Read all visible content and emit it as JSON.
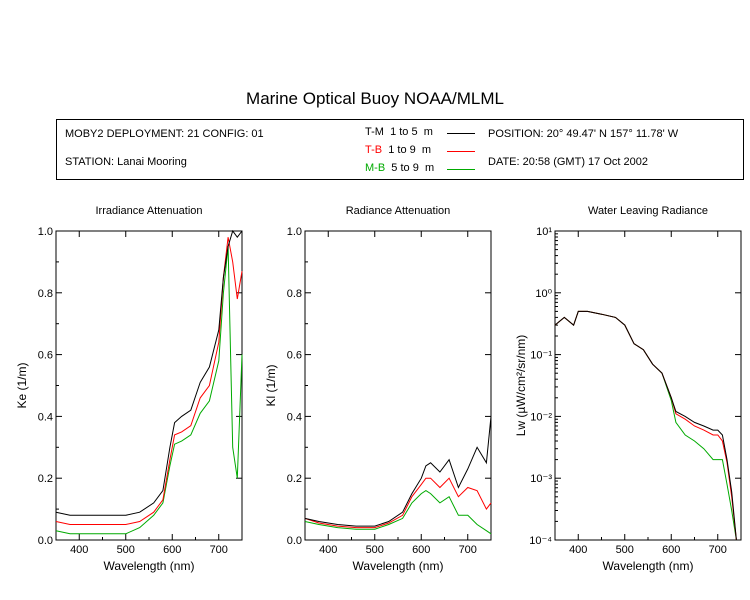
{
  "header": {
    "title": "Marine Optical Buoy NOAA/MLML",
    "deployment": "MOBY2 DEPLOYMENT: 21 CONFIG: 01",
    "station": "STATION: Lanai Mooring",
    "position": "POSITION: 20° 49.47' N   157° 11.78' W",
    "date": "DATE: 20:58 (GMT) 17 Oct 2002"
  },
  "legend": [
    {
      "code": "T-M",
      "range": "1 to 5",
      "unit": "m",
      "color": "#000000"
    },
    {
      "code": "T-B",
      "range": "1 to 9",
      "unit": "m",
      "color": "#ff0000"
    },
    {
      "code": "M-B",
      "range": "5 to 9",
      "unit": "m",
      "color": "#00aa00"
    }
  ],
  "chart_data": [
    {
      "type": "line",
      "title": "Irradiance Attenuation",
      "xlabel": "Wavelength (nm)",
      "ylabel": "Ke  (1/m)",
      "xlim": [
        350,
        750
      ],
      "ylim": [
        0,
        1.0
      ],
      "xticks": [
        "400",
        "500",
        "600",
        "700"
      ],
      "yticks": [
        "0.0",
        "0.2",
        "0.4",
        "0.6",
        "0.8",
        "1.0"
      ],
      "series": [
        {
          "name": "T-M",
          "x": [
            350,
            380,
            420,
            460,
            500,
            530,
            560,
            580,
            595,
            605,
            620,
            640,
            660,
            680,
            700,
            710,
            720,
            730,
            740,
            750
          ],
          "y": [
            0.09,
            0.08,
            0.08,
            0.08,
            0.08,
            0.09,
            0.12,
            0.16,
            0.3,
            0.38,
            0.4,
            0.42,
            0.51,
            0.56,
            0.68,
            0.85,
            0.95,
            1.0,
            0.98,
            1.0
          ]
        },
        {
          "name": "T-B",
          "x": [
            350,
            380,
            420,
            460,
            500,
            530,
            560,
            580,
            595,
            605,
            620,
            640,
            660,
            680,
            700,
            710,
            720,
            730,
            740,
            750
          ],
          "y": [
            0.06,
            0.05,
            0.05,
            0.05,
            0.05,
            0.06,
            0.09,
            0.13,
            0.26,
            0.34,
            0.35,
            0.37,
            0.46,
            0.5,
            0.64,
            0.85,
            0.98,
            0.9,
            0.78,
            0.87
          ]
        },
        {
          "name": "M-B",
          "x": [
            350,
            380,
            420,
            460,
            500,
            530,
            560,
            580,
            595,
            605,
            620,
            640,
            660,
            680,
            700,
            710,
            720,
            730,
            740,
            750
          ],
          "y": [
            0.03,
            0.02,
            0.02,
            0.02,
            0.02,
            0.04,
            0.08,
            0.12,
            0.24,
            0.31,
            0.32,
            0.34,
            0.41,
            0.45,
            0.58,
            0.8,
            0.95,
            0.3,
            0.2,
            0.6
          ]
        }
      ]
    },
    {
      "type": "line",
      "title": "Radiance Attenuation",
      "xlabel": "Wavelength (nm)",
      "ylabel": "Kl  (1/m)",
      "xlim": [
        350,
        750
      ],
      "ylim": [
        0,
        1.0
      ],
      "xticks": [
        "400",
        "500",
        "600",
        "700"
      ],
      "yticks": [
        "0.0",
        "0.2",
        "0.4",
        "0.6",
        "0.8",
        "1.0"
      ],
      "series": [
        {
          "name": "T-M",
          "x": [
            350,
            380,
            420,
            460,
            500,
            530,
            560,
            580,
            600,
            610,
            620,
            640,
            660,
            680,
            700,
            720,
            740,
            750
          ],
          "y": [
            0.07,
            0.06,
            0.05,
            0.045,
            0.045,
            0.06,
            0.09,
            0.15,
            0.2,
            0.24,
            0.25,
            0.22,
            0.26,
            0.17,
            0.23,
            0.3,
            0.25,
            0.4
          ]
        },
        {
          "name": "T-B",
          "x": [
            350,
            380,
            420,
            460,
            500,
            530,
            560,
            580,
            600,
            610,
            620,
            640,
            660,
            680,
            700,
            720,
            740,
            750
          ],
          "y": [
            0.07,
            0.055,
            0.045,
            0.04,
            0.04,
            0.055,
            0.08,
            0.14,
            0.18,
            0.2,
            0.2,
            0.17,
            0.2,
            0.14,
            0.17,
            0.16,
            0.1,
            0.12
          ]
        },
        {
          "name": "M-B",
          "x": [
            350,
            380,
            420,
            460,
            500,
            530,
            560,
            580,
            600,
            610,
            620,
            640,
            660,
            680,
            700,
            720,
            740,
            750
          ],
          "y": [
            0.06,
            0.05,
            0.04,
            0.035,
            0.035,
            0.05,
            0.07,
            0.12,
            0.15,
            0.16,
            0.15,
            0.12,
            0.14,
            0.08,
            0.08,
            0.05,
            0.03,
            0.02
          ]
        }
      ]
    },
    {
      "type": "line",
      "title": "Water Leaving Radiance",
      "xlabel": "Wavelength (nm)",
      "ylabel": "Lw  (µW/cm²/sr/nm)",
      "xlim": [
        350,
        750
      ],
      "ylim": [
        0.0001,
        10
      ],
      "yscale": "log",
      "xticks": [
        "400",
        "500",
        "600",
        "700"
      ],
      "yticks": [
        "10⁻⁴",
        "10⁻³",
        "10⁻²",
        "10⁻¹",
        "10⁰",
        "10¹"
      ],
      "series": [
        {
          "name": "T-M",
          "x": [
            350,
            370,
            390,
            400,
            420,
            450,
            480,
            500,
            520,
            540,
            560,
            580,
            600,
            610,
            630,
            650,
            670,
            690,
            700,
            710,
            720,
            730,
            740
          ],
          "y": [
            0.3,
            0.4,
            0.3,
            0.5,
            0.5,
            0.45,
            0.4,
            0.3,
            0.15,
            0.12,
            0.07,
            0.05,
            0.02,
            0.012,
            0.01,
            0.008,
            0.007,
            0.006,
            0.006,
            0.005,
            0.002,
            0.0006,
            0.0001
          ]
        },
        {
          "name": "T-B",
          "x": [
            350,
            370,
            390,
            400,
            420,
            450,
            480,
            500,
            520,
            540,
            560,
            580,
            600,
            610,
            630,
            650,
            670,
            690,
            700,
            710,
            720,
            730,
            740
          ],
          "y": [
            0.3,
            0.4,
            0.3,
            0.5,
            0.5,
            0.45,
            0.4,
            0.3,
            0.15,
            0.12,
            0.07,
            0.05,
            0.02,
            0.011,
            0.009,
            0.007,
            0.006,
            0.005,
            0.005,
            0.004,
            0.0018,
            0.0005,
            0.0001
          ]
        },
        {
          "name": "M-B",
          "x": [
            350,
            370,
            390,
            400,
            420,
            450,
            480,
            500,
            520,
            540,
            560,
            580,
            600,
            610,
            630,
            650,
            670,
            690,
            700,
            710,
            720,
            730,
            740
          ],
          "y": [
            0.3,
            0.4,
            0.3,
            0.5,
            0.5,
            0.45,
            0.4,
            0.3,
            0.15,
            0.12,
            0.07,
            0.05,
            0.018,
            0.008,
            0.005,
            0.004,
            0.003,
            0.002,
            0.002,
            0.002,
            0.0008,
            0.0003,
            0.0001
          ]
        }
      ]
    }
  ]
}
